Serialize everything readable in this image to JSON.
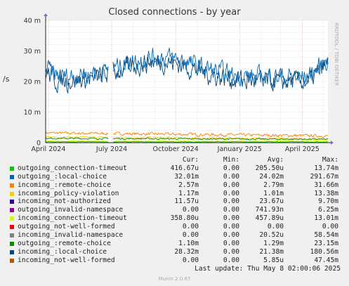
{
  "chart_data": {
    "type": "line",
    "title": "Closed connections - by year",
    "ylabel": "/s",
    "side_label": "RRDTOOL / TOBI OETIKER",
    "ylim": [
      0,
      40
    ],
    "yticks": [
      {
        "value": 0,
        "label": "0"
      },
      {
        "value": 10,
        "label": "10 m"
      },
      {
        "value": 20,
        "label": "20 m"
      },
      {
        "value": 30,
        "label": "30 m"
      },
      {
        "value": 40,
        "label": "40 m"
      }
    ],
    "xrange": [
      "2024-03-28",
      "2025-05-08"
    ],
    "xticks": [
      {
        "date": "2024-04-01",
        "label": "April 2024"
      },
      {
        "date": "2024-07-01",
        "label": "July 2024"
      },
      {
        "date": "2024-10-01",
        "label": "October 2024"
      },
      {
        "date": "2025-01-01",
        "label": "January 2025"
      },
      {
        "date": "2025-04-01",
        "label": "April 2025"
      }
    ],
    "gaps": [
      [
        "2024-06-27",
        "2024-07-02"
      ]
    ],
    "grid": true,
    "series": [
      {
        "name": "outgoing_connection-timeout",
        "color": "#00cc00",
        "cur": "416.67u",
        "min": "0.00",
        "avg": "205.50u",
        "max": "13.74m"
      },
      {
        "name": "outgoing_:local-choice",
        "color": "#0066b3",
        "cur": "32.01m",
        "min": "0.00",
        "avg": "24.02m",
        "max": "291.67m"
      },
      {
        "name": "incoming_:remote-choice",
        "color": "#ff8000",
        "cur": "2.57m",
        "min": "0.00",
        "avg": "2.79m",
        "max": "31.66m"
      },
      {
        "name": "incoming_policy-violation",
        "color": "#ffcc00",
        "cur": "1.17m",
        "min": "0.00",
        "avg": "1.01m",
        "max": "13.38m"
      },
      {
        "name": "incoming_not-authorized",
        "color": "#330099",
        "cur": "11.57u",
        "min": "0.00",
        "avg": "23.67u",
        "max": "9.70m"
      },
      {
        "name": "outgoing_invalid-namespace",
        "color": "#990099",
        "cur": "0.00",
        "min": "0.00",
        "avg": "741.93n",
        "max": "6.25m"
      },
      {
        "name": "incoming_connection-timeout",
        "color": "#ccff00",
        "cur": "358.80u",
        "min": "0.00",
        "avg": "457.89u",
        "max": "13.01m"
      },
      {
        "name": "outgoing_not-well-formed",
        "color": "#ff0000",
        "cur": "0.00",
        "min": "0.00",
        "avg": "0.00",
        "max": "0.00"
      },
      {
        "name": "incoming_invalid-namespace",
        "color": "#808080",
        "cur": "0.00",
        "min": "0.00",
        "avg": "20.52u",
        "max": "58.54m"
      },
      {
        "name": "outgoing_:remote-choice",
        "color": "#008f00",
        "cur": "1.10m",
        "min": "0.00",
        "avg": "1.29m",
        "max": "23.15m"
      },
      {
        "name": "incoming_:local-choice",
        "color": "#00487d",
        "cur": "28.32m",
        "min": "0.00",
        "avg": "21.38m",
        "max": "180.56m"
      },
      {
        "name": "incoming_not-well-formed",
        "color": "#b35a00",
        "cur": "0.00",
        "min": "0.00",
        "avg": "5.85u",
        "max": "47.45m"
      }
    ]
  },
  "legend_header": {
    "cur": "Cur:",
    "min": "Min:",
    "avg": "Avg:",
    "max": "Max:"
  },
  "last_update": "Last update: Thu May  8 02:00:06 2025",
  "footer": "Munin 2.0.67"
}
